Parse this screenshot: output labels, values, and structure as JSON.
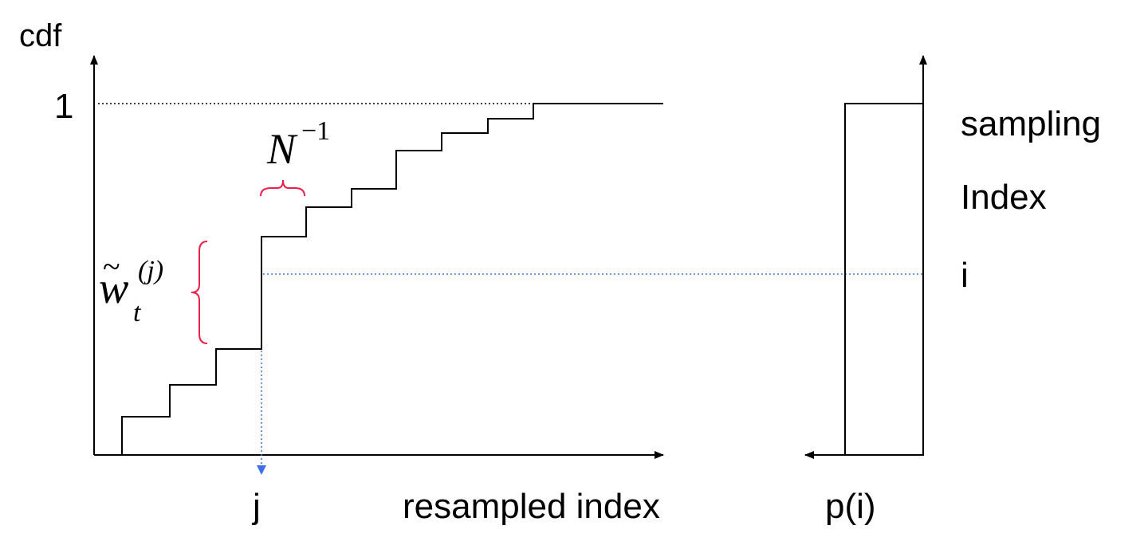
{
  "labels": {
    "cdf_axis": "cdf",
    "y_one": "1",
    "resampled_index": "resampled index",
    "j_marker": "j",
    "sampling": "sampling",
    "index": "Index",
    "i_marker": "i",
    "p_of_i": "p(i)"
  },
  "math": {
    "n_base": "N",
    "n_exp": "−1",
    "w_base": "w",
    "w_tilde": "~",
    "w_sub": "t",
    "w_sup": "(j)"
  },
  "colors": {
    "line": "#000000",
    "brace": "#e8204a",
    "blue": "#3d6fe8"
  },
  "diagram": {
    "cdf_steps_count": 10,
    "uniform_box": "rectangle"
  }
}
